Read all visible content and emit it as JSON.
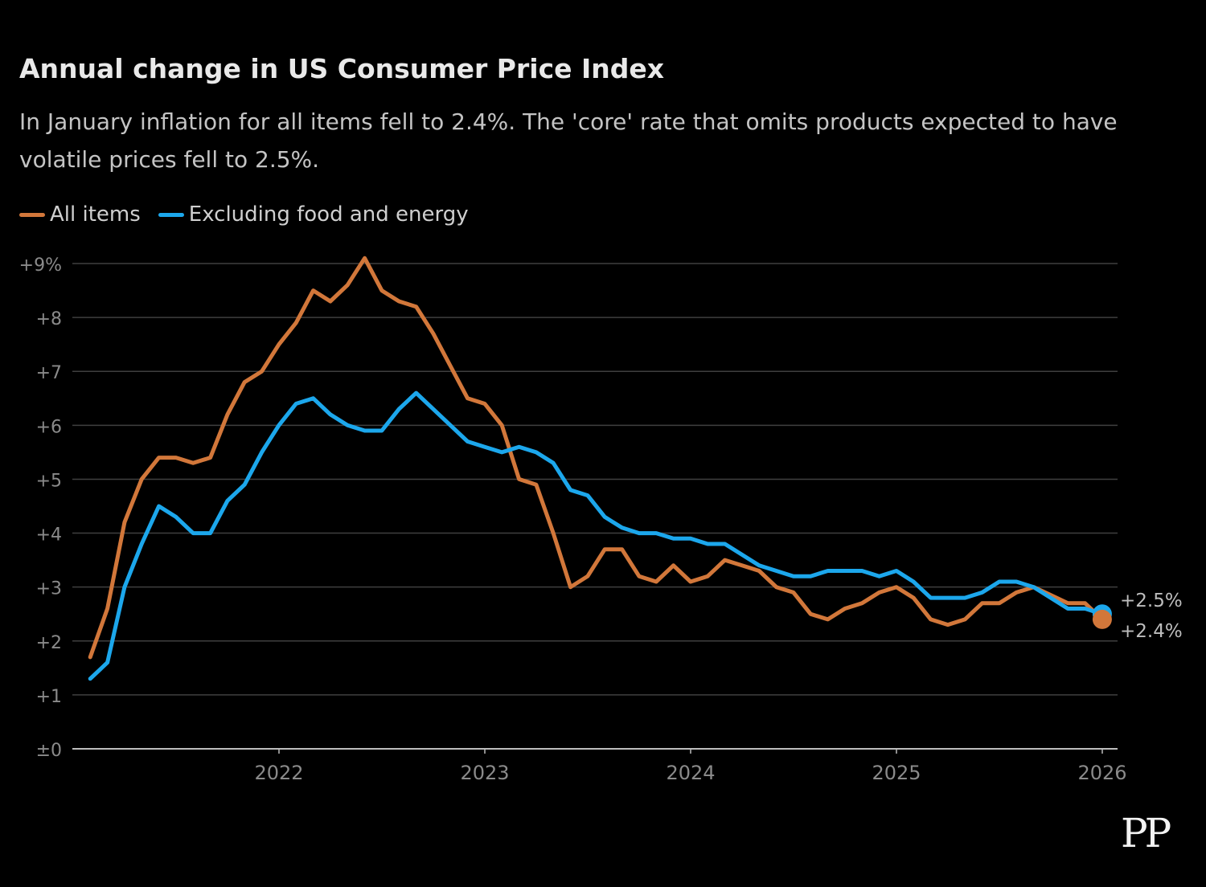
{
  "colors": {
    "background": "#000000",
    "all_items": "#d2773a",
    "core": "#1ca7ec",
    "grid": "#3f3f3f",
    "axis": "#bdbdbd",
    "tick_label": "#8a8a8a",
    "end_label": "#bdbdbd"
  },
  "logo": {
    "text": "PP"
  },
  "chart_data": {
    "type": "line",
    "title": "Annual change in US Consumer Price Index",
    "subtitle": "In January inflation for all items fell to 2.4%. The 'core' rate that omits products expected to have volatile prices fell to 2.5%.",
    "xlabel": "",
    "ylabel": "",
    "y_ticks": [
      {
        "value": 0,
        "label": "±0"
      },
      {
        "value": 1,
        "label": "+1"
      },
      {
        "value": 2,
        "label": "+2"
      },
      {
        "value": 3,
        "label": "+3"
      },
      {
        "value": 4,
        "label": "+4"
      },
      {
        "value": 5,
        "label": "+5"
      },
      {
        "value": 6,
        "label": "+6"
      },
      {
        "value": 7,
        "label": "+7"
      },
      {
        "value": 8,
        "label": "+8"
      },
      {
        "value": 9,
        "label": "+9%"
      }
    ],
    "ylim": [
      0,
      9
    ],
    "x_ticks": [
      {
        "value": 2022,
        "label": "2022"
      },
      {
        "value": 2023,
        "label": "2023"
      },
      {
        "value": 2024,
        "label": "2024"
      },
      {
        "value": 2025,
        "label": "2025"
      },
      {
        "value": 2026,
        "label": "2026"
      }
    ],
    "xlim": [
      2021,
      2026.08
    ],
    "x_start": 2021.083,
    "x_step": 0.0833333,
    "legend_position": "top-left",
    "grid": true,
    "series": [
      {
        "name": "All items",
        "color": "#d2773a",
        "end_label": "+2.4%",
        "values": [
          1.7,
          2.6,
          4.2,
          5.0,
          5.4,
          5.4,
          5.3,
          5.4,
          6.2,
          6.8,
          7.0,
          7.5,
          7.9,
          8.5,
          8.3,
          8.6,
          9.1,
          8.5,
          8.3,
          8.2,
          7.7,
          7.1,
          6.5,
          6.4,
          6.0,
          5.0,
          4.9,
          4.0,
          3.0,
          3.2,
          3.7,
          3.7,
          3.2,
          3.1,
          3.4,
          3.1,
          3.2,
          3.5,
          3.4,
          3.3,
          3.0,
          2.9,
          2.5,
          2.4,
          2.6,
          2.7,
          2.9,
          3.0,
          2.8,
          2.4,
          2.3,
          2.4,
          2.7,
          2.7,
          2.9,
          3.0,
          2.85,
          2.7,
          2.7,
          2.4
        ]
      },
      {
        "name": "Excluding food and energy",
        "color": "#1ca7ec",
        "end_label": "+2.5%",
        "values": [
          1.3,
          1.6,
          3.0,
          3.8,
          4.5,
          4.3,
          4.0,
          4.0,
          4.6,
          4.9,
          5.5,
          6.0,
          6.4,
          6.5,
          6.2,
          6.0,
          5.9,
          5.9,
          6.3,
          6.6,
          6.3,
          6.0,
          5.7,
          5.6,
          5.5,
          5.6,
          5.5,
          5.3,
          4.8,
          4.7,
          4.3,
          4.1,
          4.0,
          4.0,
          3.9,
          3.9,
          3.8,
          3.8,
          3.6,
          3.4,
          3.3,
          3.2,
          3.2,
          3.3,
          3.3,
          3.3,
          3.2,
          3.3,
          3.1,
          2.8,
          2.8,
          2.8,
          2.9,
          3.1,
          3.1,
          3.0,
          2.8,
          2.6,
          2.6,
          2.5
        ]
      }
    ]
  }
}
